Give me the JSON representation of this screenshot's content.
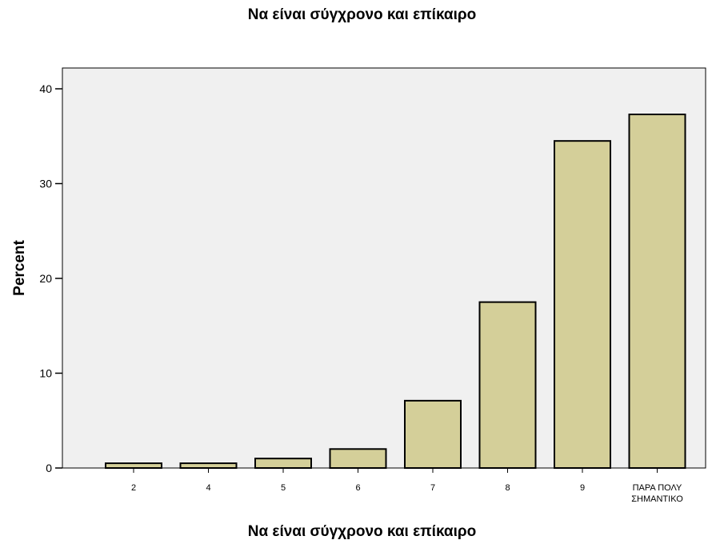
{
  "chart_data": {
    "type": "bar",
    "title": "Να είναι σύγχρονο και επίκαιρο",
    "xlabel": "Να είναι σύγχρονο και επίκαιρο",
    "ylabel": "Percent",
    "categories": [
      "2",
      "4",
      "5",
      "6",
      "7",
      "8",
      "9",
      "ΠΑΡΑ ΠΟΛΥ ΣΗΜΑΝΤΙΚΟ"
    ],
    "values": [
      0.5,
      0.5,
      1.0,
      2.0,
      7.1,
      17.5,
      34.5,
      37.3
    ],
    "ylim": [
      0,
      40
    ],
    "yticks": [
      0,
      10,
      20,
      30,
      40
    ],
    "grid": false,
    "colors": {
      "bar_fill": "#d4cf99",
      "bar_stroke": "#000000",
      "plot_background": "#f0f0f0"
    }
  }
}
